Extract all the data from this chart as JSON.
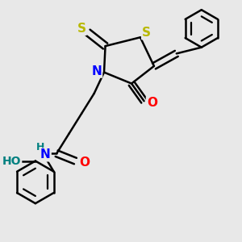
{
  "bg_color": "#e8e8e8",
  "bond_color": "#000000",
  "bond_width": 1.8,
  "atom_colors": {
    "S": "#b8b800",
    "N": "#0000ff",
    "O": "#ff0000",
    "H": "#008080",
    "C": "#000000"
  },
  "font_size": 10,
  "fig_size": [
    3.0,
    3.0
  ],
  "dpi": 100,
  "xlim": [
    0.05,
    0.95
  ],
  "ylim": [
    0.02,
    0.98
  ]
}
